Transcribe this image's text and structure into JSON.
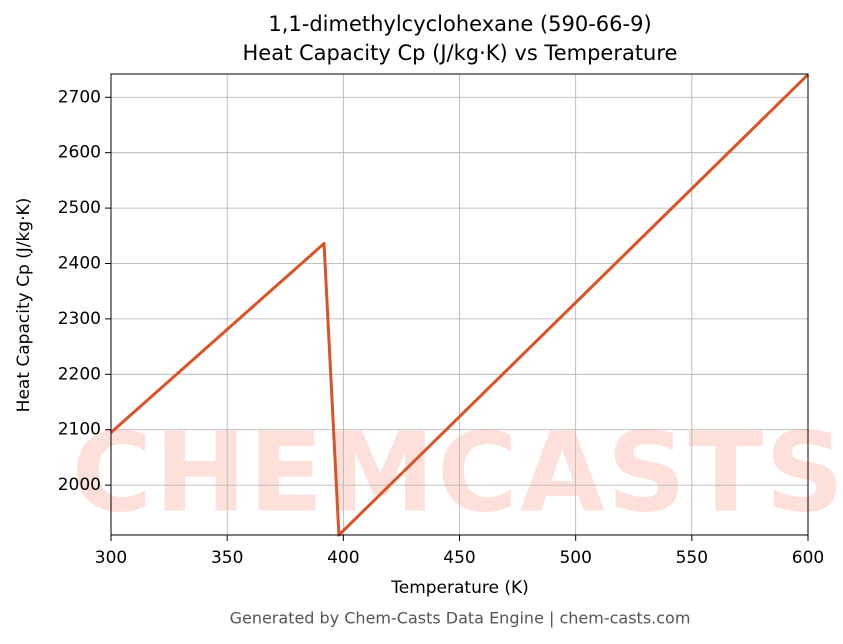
{
  "chart_data": {
    "type": "line",
    "title": "1,1-dimethylcyclohexane (590-66-9)",
    "subtitle": "Heat Capacity Cp (J/kg·K) vs Temperature",
    "x_label": "Temperature (K)",
    "y_label": "Heat Capacity Cp (J/kg·K)",
    "footer": "Generated by Chem-Casts Data Engine | chem-casts.com",
    "watermark": "CHEMCASTS",
    "x": [
      300,
      391.7,
      398.1,
      600
    ],
    "series": [
      {
        "name": "Cp",
        "color": "#d95326",
        "values": [
          2095,
          2436,
          1910,
          2741
        ]
      }
    ],
    "xlim": [
      300,
      600
    ],
    "xticks": [
      300,
      350,
      400,
      450,
      500,
      550,
      600
    ],
    "ylim": [
      1910,
      2742
    ],
    "yticks": [
      2000,
      2100,
      2200,
      2300,
      2400,
      2500,
      2600,
      2700
    ],
    "grid": true
  }
}
